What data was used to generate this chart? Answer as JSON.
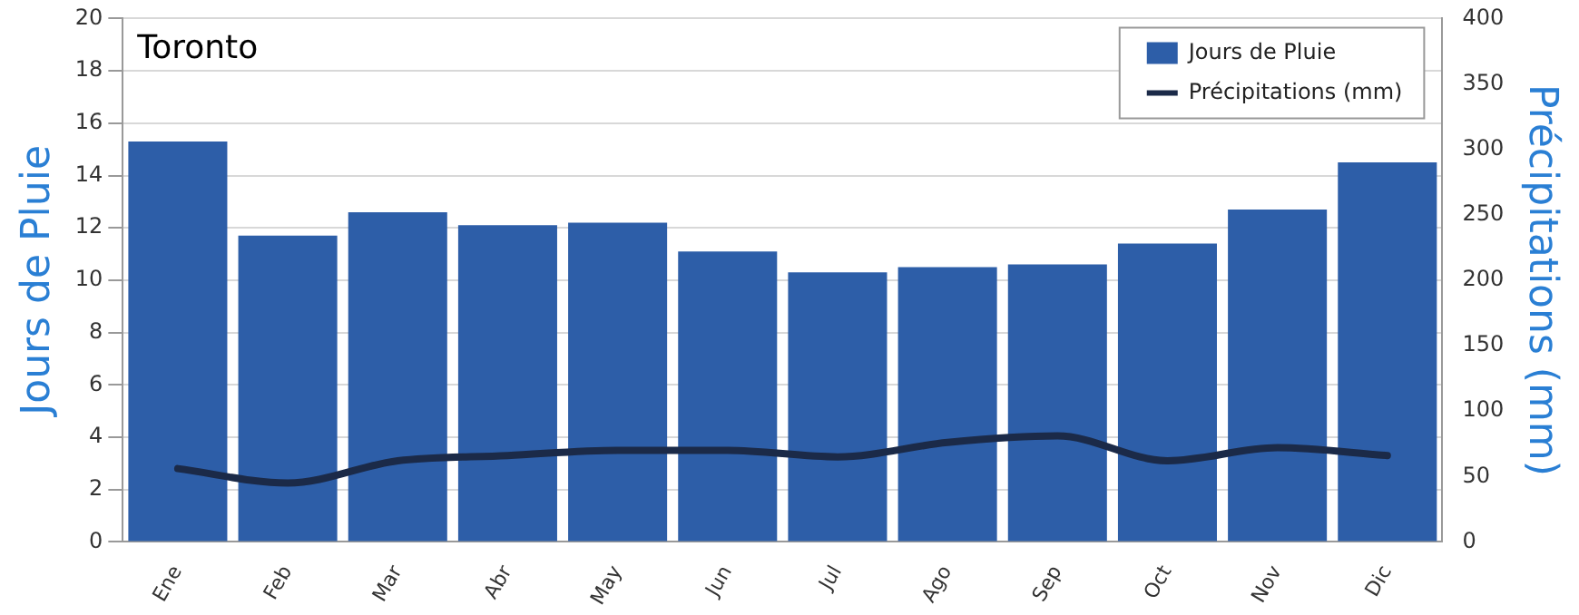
{
  "chart_data": {
    "type": "bar",
    "title": "Toronto",
    "ylabel": "Jours de Pluie",
    "y2label": "Précipitations (mm)",
    "categories": [
      "Ene",
      "Feb",
      "Mar",
      "Abr",
      "May",
      "Jun",
      "Jul",
      "Ago",
      "Sep",
      "Oct",
      "Nov",
      "Dic"
    ],
    "series": [
      {
        "name": "Jours de Pluie",
        "color": "#2d5ea8",
        "values": [
          15.3,
          11.7,
          12.6,
          12.1,
          12.2,
          11.1,
          10.3,
          10.5,
          10.6,
          11.4,
          12.7,
          14.5
        ]
      },
      {
        "name": "Précipitations (mm)",
        "type": "line",
        "axis": "y2",
        "color": "#1b2a48",
        "values": [
          56,
          45,
          62,
          66,
          70,
          70,
          65,
          76,
          81,
          62,
          72,
          66
        ]
      }
    ],
    "ylim": [
      0,
      20
    ],
    "yticks": [
      0,
      2,
      4,
      6,
      8,
      10,
      12,
      14,
      16,
      18,
      20
    ],
    "y2lim": [
      0,
      400
    ],
    "y2ticks": [
      0,
      50,
      100,
      150,
      200,
      250,
      300,
      350,
      400
    ],
    "grid": "y",
    "legend": "top right"
  }
}
